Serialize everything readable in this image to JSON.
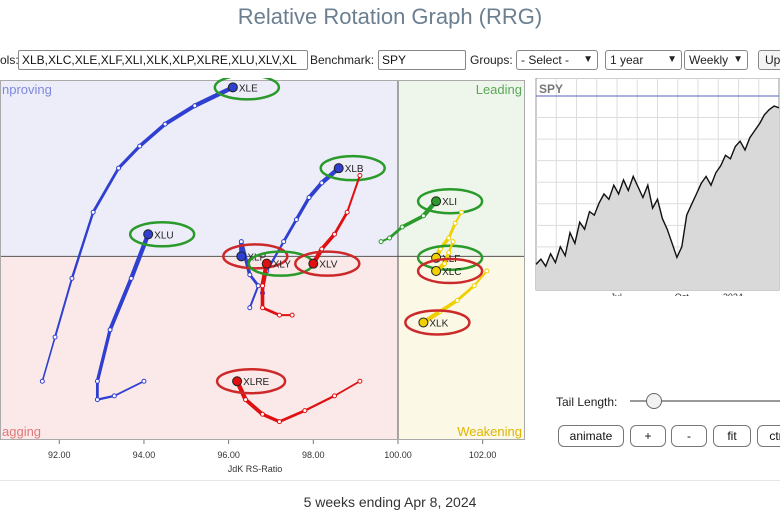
{
  "title": "Relative Rotation Graph (RRG)",
  "toolbar": {
    "symbols_label": "ols:",
    "symbols_value": "XLB,XLC,XLE,XLF,XLI,XLK,XLP,XLRE,XLU,XLV,XL",
    "benchmark_label": "Benchmark:",
    "benchmark_value": "SPY",
    "groups_label": "Groups:",
    "groups_value": "- Select -",
    "period_value": "1 year",
    "frequency_value": "Weekly",
    "update_label": "Up"
  },
  "quadrants": {
    "improving": "nproving",
    "leading": "Leading",
    "weakening": "Weakening",
    "lagging": "agging"
  },
  "chart_data": [
    {
      "type": "scatter",
      "title": "",
      "xlabel": "JdK RS-Ratio",
      "ylabel": "",
      "xlim": [
        90.6,
        103.0
      ],
      "ylim": [
        97.5,
        102.4
      ],
      "x_ticks": [
        "92.00",
        "94.00",
        "96.00",
        "98.00",
        "100.00",
        "102.00"
      ],
      "center": [
        100,
        100
      ],
      "grid": false,
      "series": [
        {
          "name": "XLE",
          "color": "#2f3fd0",
          "circled": "#2a9a2a",
          "points": [
            [
              91.6,
              98.3
            ],
            [
              91.9,
              98.9
            ],
            [
              92.3,
              99.7
            ],
            [
              92.8,
              100.6
            ],
            [
              93.4,
              101.2
            ],
            [
              93.9,
              101.5
            ],
            [
              94.5,
              101.8
            ],
            [
              95.2,
              102.05
            ],
            [
              96.1,
              102.3
            ]
          ]
        },
        {
          "name": "XLU",
          "color": "#2f3fd0",
          "circled": "#2a9a2a",
          "points": [
            [
              94.0,
              98.3
            ],
            [
              93.3,
              98.1
            ],
            [
              92.9,
              98.05
            ],
            [
              92.9,
              98.3
            ],
            [
              93.2,
              99.0
            ],
            [
              93.7,
              99.7
            ],
            [
              94.1,
              100.3
            ]
          ]
        },
        {
          "name": "XLB",
          "color": "#2f3fd0",
          "circled": "#2a9a2a",
          "points": [
            [
              96.8,
              99.5
            ],
            [
              96.9,
              99.8
            ],
            [
              97.3,
              100.2
            ],
            [
              97.6,
              100.5
            ],
            [
              97.9,
              100.8
            ],
            [
              98.2,
              101.0
            ],
            [
              98.6,
              101.2
            ]
          ]
        },
        {
          "name": "XLP",
          "color": "#2f3fd0",
          "circled": "#cc2a2a",
          "points": [
            [
              96.5,
              99.3
            ],
            [
              96.7,
              99.6
            ],
            [
              96.5,
              99.75
            ],
            [
              96.3,
              100.2
            ],
            [
              96.3,
              100.0
            ]
          ]
        },
        {
          "name": "XLY",
          "color": "#e01010",
          "circled": "#2a9a2a",
          "points": [
            [
              97.5,
              99.2
            ],
            [
              97.2,
              99.2
            ],
            [
              96.8,
              99.3
            ],
            [
              96.8,
              99.6
            ],
            [
              96.9,
              99.9
            ]
          ]
        },
        {
          "name": "XLV",
          "color": "#e01010",
          "circled": "#cc2a2a",
          "points": [
            [
              99.1,
              101.1
            ],
            [
              98.8,
              100.6
            ],
            [
              98.5,
              100.3
            ],
            [
              98.2,
              100.1
            ],
            [
              98.0,
              99.9
            ]
          ]
        },
        {
          "name": "XLRE",
          "color": "#e01010",
          "circled": "#cc2a2a",
          "points": [
            [
              99.1,
              98.3
            ],
            [
              98.5,
              98.1
            ],
            [
              97.8,
              97.9
            ],
            [
              97.2,
              97.75
            ],
            [
              96.8,
              97.85
            ],
            [
              96.4,
              98.05
            ],
            [
              96.2,
              98.3
            ]
          ]
        },
        {
          "name": "XLI",
          "color": "#2a9a2a",
          "circled": "#2a9a2a",
          "points": [
            [
              99.6,
              100.2
            ],
            [
              99.8,
              100.25
            ],
            [
              100.1,
              100.4
            ],
            [
              100.6,
              100.55
            ],
            [
              100.9,
              100.75
            ]
          ]
        },
        {
          "name": "XLF",
          "color": "#f0d000",
          "circled": "#2a9a2a",
          "points": [
            [
              101.5,
              100.6
            ],
            [
              101.35,
              100.45
            ],
            [
              101.2,
              100.25
            ],
            [
              101.0,
              100.1
            ],
            [
              100.9,
              99.98
            ]
          ]
        },
        {
          "name": "XLC",
          "color": "#f0d000",
          "circled": "#cc2a2a",
          "points": [
            [
              101.3,
              100.2
            ],
            [
              101.2,
              100.05
            ],
            [
              101.1,
              99.9
            ],
            [
              100.9,
              99.8
            ]
          ]
        },
        {
          "name": "XLK",
          "color": "#f0d000",
          "circled": "#cc2a2a",
          "points": [
            [
              102.1,
              99.8
            ],
            [
              101.8,
              99.6
            ],
            [
              101.4,
              99.4
            ],
            [
              101.0,
              99.25
            ],
            [
              100.6,
              99.1
            ]
          ]
        }
      ]
    },
    {
      "type": "area",
      "title": "",
      "legend_label": "SPY",
      "x_ticks": [
        "Jul",
        "Oct",
        "2024"
      ],
      "x_tick_positions": [
        0.33,
        0.6,
        0.81
      ],
      "ylim": [
        0,
        1
      ],
      "values": [
        0.1,
        0.13,
        0.09,
        0.16,
        0.11,
        0.2,
        0.15,
        0.28,
        0.22,
        0.34,
        0.3,
        0.4,
        0.38,
        0.45,
        0.5,
        0.47,
        0.55,
        0.5,
        0.58,
        0.52,
        0.6,
        0.54,
        0.48,
        0.55,
        0.42,
        0.47,
        0.36,
        0.3,
        0.22,
        0.14,
        0.2,
        0.38,
        0.44,
        0.5,
        0.56,
        0.6,
        0.55,
        0.62,
        0.66,
        0.72,
        0.7,
        0.77,
        0.8,
        0.75,
        0.82,
        0.86,
        0.9,
        0.95,
        0.98,
        1.0,
        0.99
      ]
    }
  ],
  "controls": {
    "tail_length_label": "Tail Length:",
    "tail_length_value": 0.1,
    "animate_label": "animate",
    "plus_label": "+",
    "minus_label": "-",
    "fit_label": "fit",
    "ctrl_label": "ctr"
  },
  "footer": "5 weeks ending Apr 8, 2024"
}
